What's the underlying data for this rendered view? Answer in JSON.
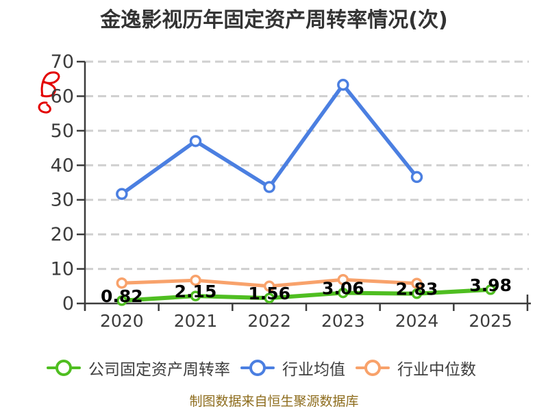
{
  "title": "金逸影视历年固定资产周转率情况(次)",
  "footer": {
    "text": "制图数据来自恒生聚源数据库"
  },
  "colors": {
    "company_green": "#4fbe21",
    "industry_avg_blue": "#4b7fe1",
    "industry_median_orange": "#f8a26b",
    "grid": "#cfcfcf",
    "axis": "#3c3c3c",
    "tick_label": "#3c3c3c",
    "data_label": "#000000",
    "title": "#333333",
    "legend_text": "#3e3e3e",
    "footer": "#8e6d1e",
    "watermark_red": "#e30000",
    "background": "#ffffff"
  },
  "chart_data": {
    "type": "line",
    "title": "金逸影视历年固定资产周转率情况(次)",
    "xlabel": "",
    "ylabel": "",
    "categories": [
      "2020",
      "2021",
      "2022",
      "2023",
      "2024",
      "2025"
    ],
    "series": [
      {
        "name": "公司固定资产周转率",
        "color": "#4fbe21",
        "values": [
          0.82,
          2.15,
          1.56,
          3.06,
          2.83,
          3.98
        ],
        "data_labels": [
          "0.82",
          "2.15",
          "1.56",
          "3.06",
          "2.83",
          "3.98"
        ]
      },
      {
        "name": "行业均值",
        "color": "#4b7fe1",
        "values": [
          31.7,
          47.0,
          33.7,
          63.3,
          36.6,
          null
        ],
        "data_labels": []
      },
      {
        "name": "行业中位数",
        "color": "#f8a26b",
        "values": [
          5.9,
          6.7,
          5.0,
          6.9,
          5.8,
          null
        ],
        "data_labels": []
      }
    ],
    "ylim": [
      0,
      70
    ],
    "yticks": [
      0,
      10,
      20,
      30,
      40,
      50,
      60,
      70
    ],
    "grid": "dashed-horizontal-only",
    "legend_position": "bottom",
    "marker": "hollow-circle"
  }
}
